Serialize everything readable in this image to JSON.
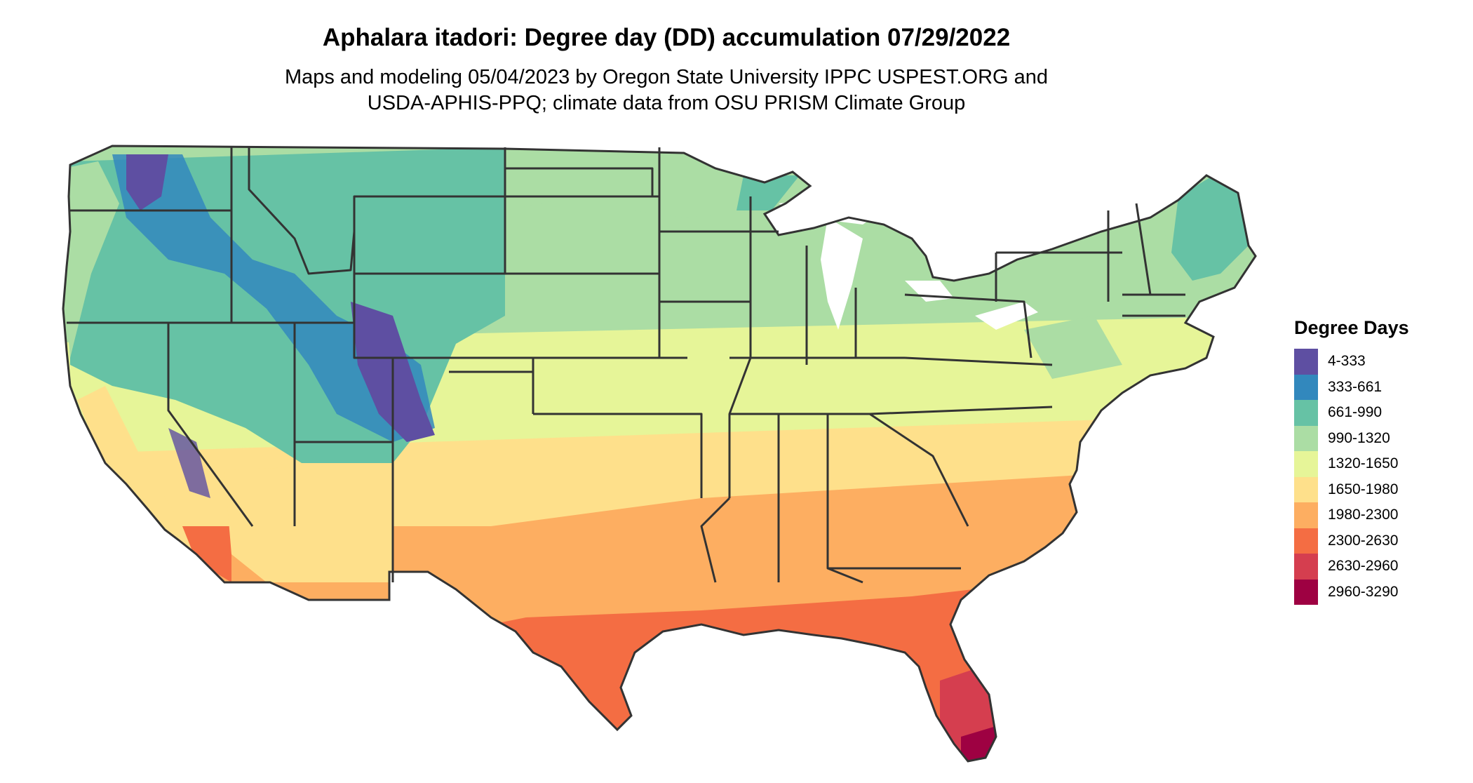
{
  "title": "Aphalara itadori: Degree day (DD) accumulation 07/29/2022",
  "subtitle_line1": "Maps and modeling 05/04/2023 by Oregon State University IPPC USPEST.ORG and",
  "subtitle_line2": "USDA-APHIS-PPQ; climate data from OSU PRISM Climate Group",
  "legend": {
    "title": "Degree Days",
    "items": [
      {
        "label": "4-333",
        "color": "#5e4fa2"
      },
      {
        "label": "333-661",
        "color": "#3288bd"
      },
      {
        "label": "661-990",
        "color": "#66c2a5"
      },
      {
        "label": "990-1320",
        "color": "#abdda4"
      },
      {
        "label": "1320-1650",
        "color": "#e6f598"
      },
      {
        "label": "1650-1980",
        "color": "#fee08b"
      },
      {
        "label": "1980-2300",
        "color": "#fdae61"
      },
      {
        "label": "2300-2630",
        "color": "#f46d43"
      },
      {
        "label": "2630-2960",
        "color": "#d53e4f"
      },
      {
        "label": "2960-3290",
        "color": "#9e0142"
      }
    ]
  }
}
